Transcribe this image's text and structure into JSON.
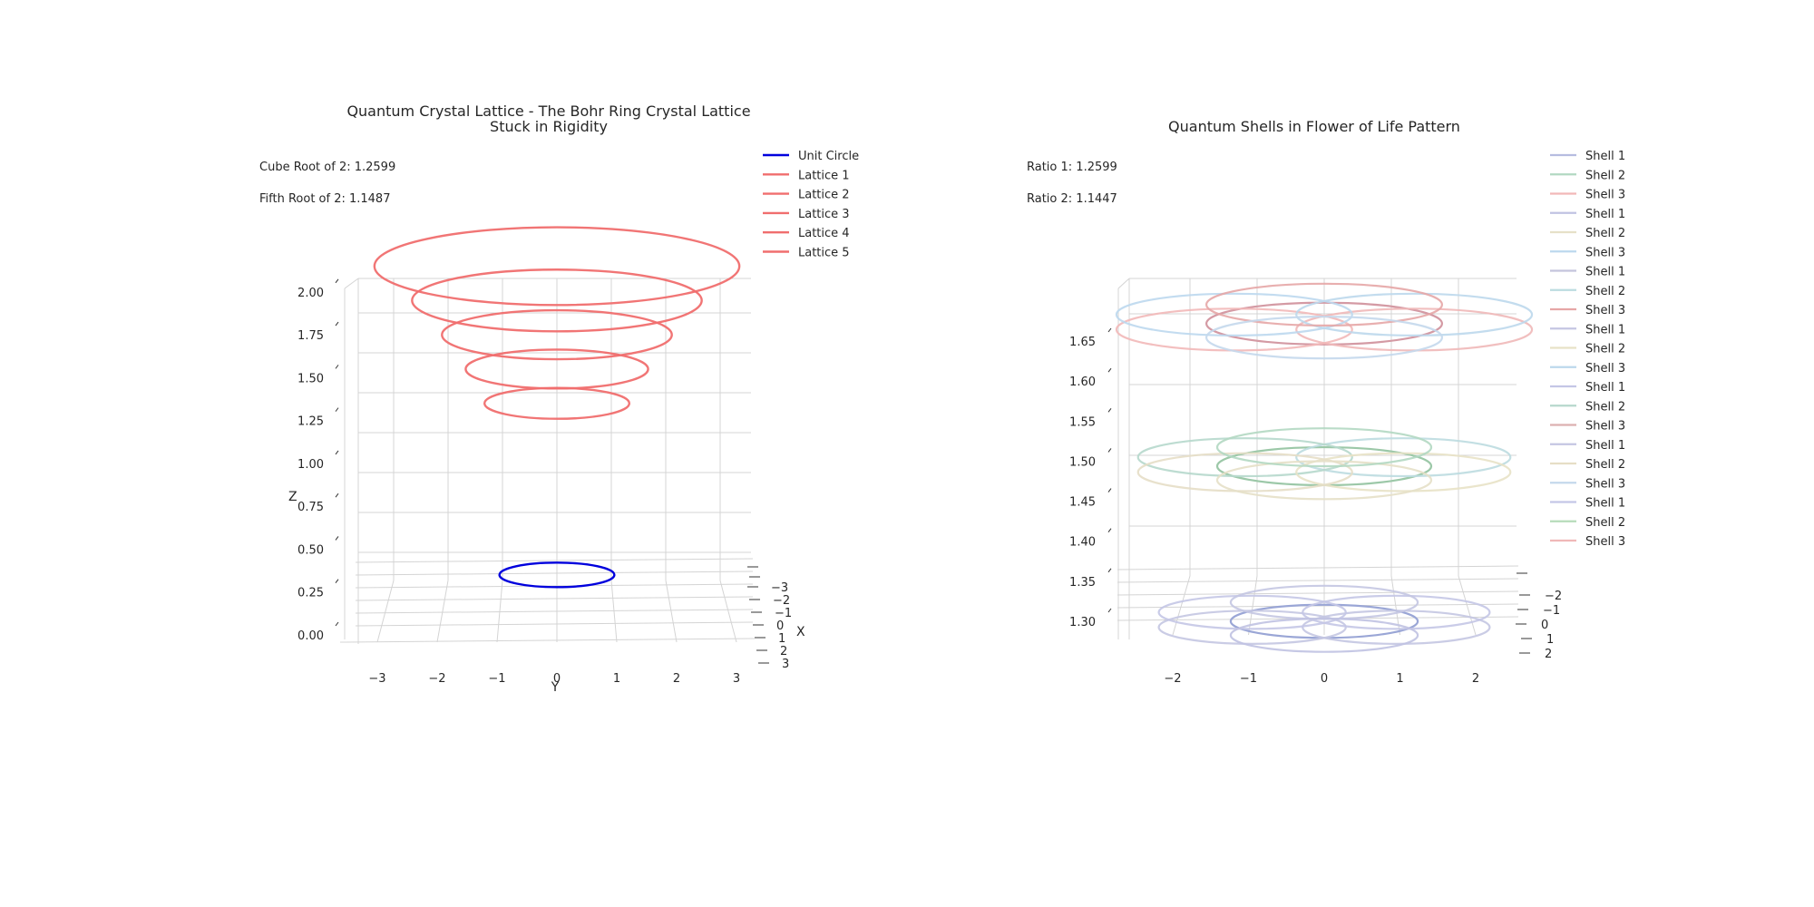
{
  "chart_data": [
    {
      "type": "line3d",
      "title_lines": [
        "Quantum Crystal Lattice - The Bohr Ring Crystal Lattice",
        "Stuck in Rigidity"
      ],
      "annotations": [
        "Cube Root of 2: 1.2599",
        "Fifth Root of 2: 1.1487"
      ],
      "xlabel": "X",
      "ylabel": "Y",
      "zlabel": "Z",
      "y_ticks": [
        "−3",
        "−2",
        "−1",
        "0",
        "1",
        "2",
        "3"
      ],
      "x_ticks": [
        "−3",
        "−2",
        "−1",
        "0",
        "1",
        "2",
        "3"
      ],
      "z_ticks": [
        "0.00",
        "0.25",
        "0.50",
        "0.75",
        "1.00",
        "1.25",
        "1.50",
        "1.75",
        "2.00"
      ],
      "zlim": [
        0,
        2.2
      ],
      "grid": true,
      "legend_position": "top-right",
      "series": [
        {
          "name": "Unit Circle",
          "color": "#0000dd",
          "radius": 1.0,
          "z": 0.35
        },
        {
          "name": "Lattice 1",
          "color": "#f06e6e",
          "radius": 1.2599,
          "z": 1.35
        },
        {
          "name": "Lattice 2",
          "color": "#f06e6e",
          "radius": 1.5874,
          "z": 1.55
        },
        {
          "name": "Lattice 3",
          "color": "#f06e6e",
          "radius": 2.0,
          "z": 1.75
        },
        {
          "name": "Lattice 4",
          "color": "#f06e6e",
          "radius": 2.52,
          "z": 1.95
        },
        {
          "name": "Lattice 5",
          "color": "#f06e6e",
          "radius": 3.175,
          "z": 2.15
        }
      ]
    },
    {
      "type": "line3d",
      "title_lines": [
        "Quantum Shells in Flower of Life Pattern"
      ],
      "annotations": [
        "Ratio 1: 1.2599",
        "Ratio 2: 1.1447"
      ],
      "y_ticks": [
        "−2",
        "−1",
        "0",
        "1",
        "2"
      ],
      "x_ticks": [
        "−2",
        "−1",
        "0",
        "1",
        "2"
      ],
      "z_ticks": [
        "1.30",
        "1.35",
        "1.40",
        "1.45",
        "1.50",
        "1.55",
        "1.60",
        "1.65"
      ],
      "zlim": [
        1.29,
        1.69
      ],
      "grid": true,
      "legend_position": "top-right",
      "legend": [
        {
          "name": "Shell 1",
          "color": "#b6bce0"
        },
        {
          "name": "Shell 2",
          "color": "#b2d8c2"
        },
        {
          "name": "Shell 3",
          "color": "#f2b8b8"
        },
        {
          "name": "Shell 1",
          "color": "#c0c2e2"
        },
        {
          "name": "Shell 2",
          "color": "#e6e0c8"
        },
        {
          "name": "Shell 3",
          "color": "#bcd8ee"
        },
        {
          "name": "Shell 1",
          "color": "#c4c4dc"
        },
        {
          "name": "Shell 2",
          "color": "#bcdce0"
        },
        {
          "name": "Shell 3",
          "color": "#e6a6a6"
        },
        {
          "name": "Shell 1",
          "color": "#c4c6e2"
        },
        {
          "name": "Shell 2",
          "color": "#e8e2c6"
        },
        {
          "name": "Shell 3",
          "color": "#bcd8ec"
        },
        {
          "name": "Shell 1",
          "color": "#c4c6e6"
        },
        {
          "name": "Shell 2",
          "color": "#b6d8cc"
        },
        {
          "name": "Shell 3",
          "color": "#dcb0b0"
        },
        {
          "name": "Shell 1",
          "color": "#c4c6e2"
        },
        {
          "name": "Shell 2",
          "color": "#e6dec6"
        },
        {
          "name": "Shell 3",
          "color": "#c4d8ec"
        },
        {
          "name": "Shell 1",
          "color": "#c4c6e6"
        },
        {
          "name": "Shell 2",
          "color": "#b6dcba"
        },
        {
          "name": "Shell 3",
          "color": "#f0b8b8"
        }
      ],
      "layers": [
        {
          "z": 1.3,
          "circles": [
            {
              "cx": 0,
              "cy": 0,
              "r": 1.2599,
              "color": "#9aa6d6"
            },
            {
              "cx": 1,
              "cy": -0.6,
              "r": 1.2599,
              "color": "#c4c6e2"
            },
            {
              "cx": -1,
              "cy": -0.6,
              "r": 1.2599,
              "color": "#c4c6e2"
            },
            {
              "cx": 1,
              "cy": 0.9,
              "r": 1.2599,
              "color": "#c4c6e6"
            },
            {
              "cx": -1,
              "cy": 0.9,
              "r": 1.2599,
              "color": "#c4c6e6"
            },
            {
              "cx": 0,
              "cy": 1.9,
              "r": 1.2599,
              "color": "#c4c6e2"
            },
            {
              "cx": 0,
              "cy": -1.4,
              "r": 1.2599,
              "color": "#c0c2e2"
            }
          ]
        },
        {
          "z": 1.4937,
          "circles": [
            {
              "cx": 0,
              "cy": 0,
              "r": 1.4422,
              "color": "#9cc8a8"
            },
            {
              "cx": 1.1,
              "cy": 0.9,
              "r": 1.4422,
              "color": "#bcdce0"
            },
            {
              "cx": -1.1,
              "cy": 0.9,
              "r": 1.4422,
              "color": "#b6d8cc"
            },
            {
              "cx": 1.1,
              "cy": -0.6,
              "r": 1.4422,
              "color": "#e8e2c6"
            },
            {
              "cx": -1.1,
              "cy": -0.6,
              "r": 1.4422,
              "color": "#e6dec6"
            },
            {
              "cx": 0,
              "cy": -1.4,
              "r": 1.4422,
              "color": "#e6e0c8"
            },
            {
              "cx": 0,
              "cy": 1.9,
              "r": 1.4422,
              "color": "#b2d8c2"
            }
          ]
        },
        {
          "z": 1.6718,
          "circles": [
            {
              "cx": 0,
              "cy": 0,
              "r": 1.5874,
              "color": "#d49aa4"
            },
            {
              "cx": 1.25,
              "cy": -0.6,
              "r": 1.5874,
              "color": "#f0b8b8"
            },
            {
              "cx": -1.25,
              "cy": -0.6,
              "r": 1.5874,
              "color": "#f2b8b8"
            },
            {
              "cx": 1.25,
              "cy": 0.9,
              "r": 1.5874,
              "color": "#bcd8ec"
            },
            {
              "cx": -1.25,
              "cy": 0.9,
              "r": 1.5874,
              "color": "#bcd8ee"
            },
            {
              "cx": 0,
              "cy": 1.9,
              "r": 1.5874,
              "color": "#e6a6a6"
            },
            {
              "cx": 0,
              "cy": -1.4,
              "r": 1.5874,
              "color": "#c4d8ec"
            }
          ]
        }
      ]
    }
  ]
}
